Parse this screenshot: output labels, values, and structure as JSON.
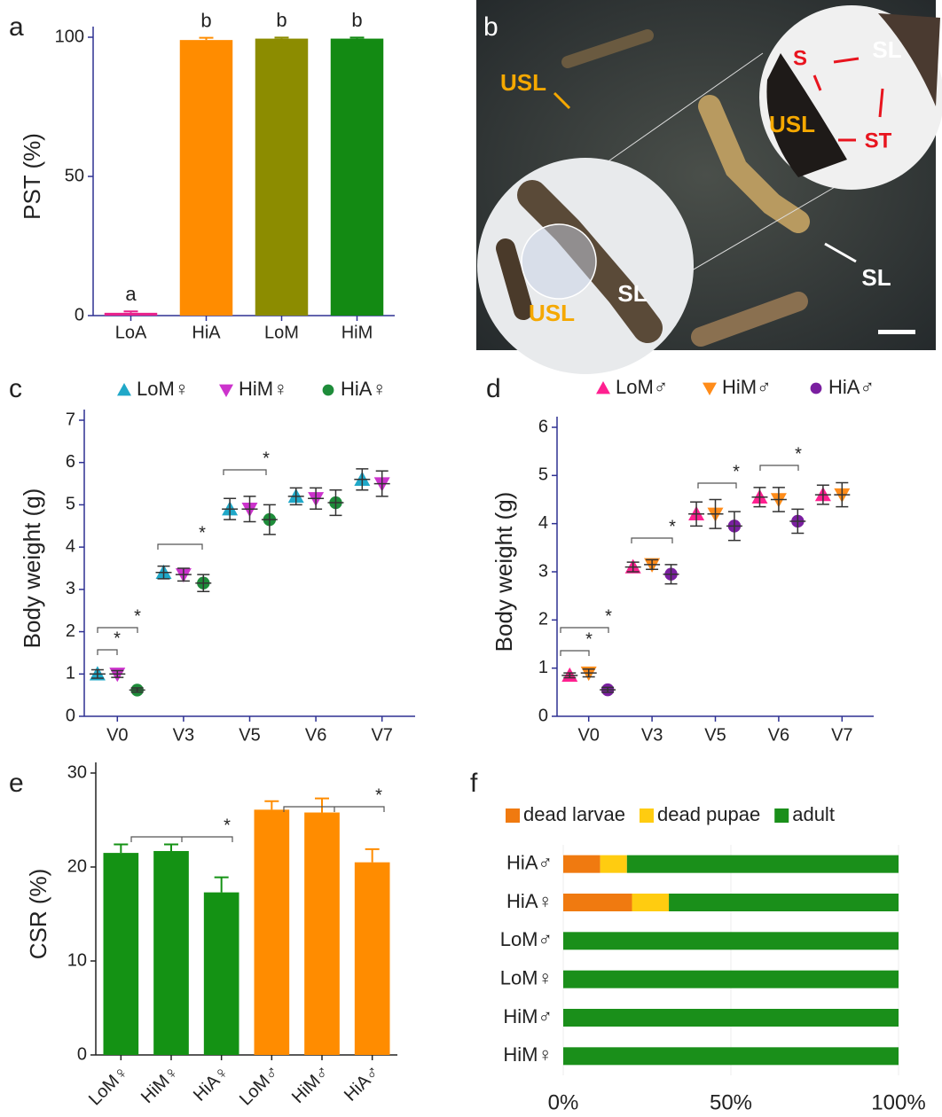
{
  "chart_data": [
    {
      "panel": "a",
      "type": "bar",
      "ylabel": "PST (%)",
      "categories": [
        "LoA",
        "HiA",
        "LoM",
        "HiM"
      ],
      "values": [
        1,
        99,
        99.5,
        99.5
      ],
      "errors": [
        0.5,
        0.8,
        0.4,
        0.4
      ],
      "colors": [
        "#e8228c",
        "#ff8c00",
        "#8c8c00",
        "#138a13"
      ],
      "group_labels": [
        "a",
        "b",
        "b",
        "b"
      ],
      "ylim": [
        0,
        100
      ],
      "yticks": [
        0,
        50,
        100
      ]
    },
    {
      "panel": "c",
      "type": "dot",
      "ylabel": "Body weight (g)",
      "categories": [
        "V0",
        "V3",
        "V5",
        "V6",
        "V7"
      ],
      "series": [
        {
          "name": "LoM♀",
          "color": "#20a8c8",
          "marker": "triangle",
          "values": [
            1.0,
            3.4,
            4.9,
            5.2,
            5.6
          ],
          "errors": [
            0.1,
            0.15,
            0.25,
            0.2,
            0.25
          ]
        },
        {
          "name": "HiM♀",
          "color": "#cc33cc",
          "marker": "triangle-down",
          "values": [
            1.0,
            3.35,
            4.9,
            5.15,
            5.5
          ],
          "errors": [
            0.08,
            0.15,
            0.3,
            0.25,
            0.3
          ]
        },
        {
          "name": "HiA♀",
          "color": "#1e8c3a",
          "marker": "circle",
          "values": [
            0.62,
            3.15,
            4.65,
            5.05,
            null
          ],
          "errors": [
            0.05,
            0.2,
            0.35,
            0.3,
            null
          ]
        }
      ],
      "annotations": [
        "*",
        "*",
        "*",
        "*"
      ],
      "ylim": [
        0,
        7
      ],
      "yticks": [
        0,
        1,
        2,
        3,
        4,
        5,
        6,
        7
      ]
    },
    {
      "panel": "d",
      "type": "dot",
      "ylabel": "Body weight (g)",
      "categories": [
        "V0",
        "V3",
        "V5",
        "V6",
        "V7"
      ],
      "series": [
        {
          "name": "LoM♂",
          "color": "#ff2090",
          "marker": "triangle",
          "values": [
            0.85,
            3.1,
            4.2,
            4.55,
            4.6
          ],
          "errors": [
            0.05,
            0.1,
            0.25,
            0.2,
            0.2
          ]
        },
        {
          "name": "HiM♂",
          "color": "#ff8c1a",
          "marker": "triangle-down",
          "values": [
            0.9,
            3.15,
            4.2,
            4.5,
            4.6
          ],
          "errors": [
            0.08,
            0.1,
            0.3,
            0.25,
            0.25
          ]
        },
        {
          "name": "HiA♂",
          "color": "#7a1fa0",
          "marker": "circle",
          "values": [
            0.55,
            2.95,
            3.95,
            4.05,
            null
          ],
          "errors": [
            0.05,
            0.2,
            0.3,
            0.25,
            null
          ]
        }
      ],
      "annotations": [
        "*",
        "*",
        "*",
        "*",
        "*"
      ],
      "ylim": [
        0,
        6
      ],
      "yticks": [
        0,
        1,
        2,
        3,
        4,
        5,
        6
      ]
    },
    {
      "panel": "e",
      "type": "bar",
      "ylabel": "CSR (%)",
      "categories": [
        "LoM♀",
        "HiM♀",
        "HiA♀",
        "LoM♂",
        "HiM♂",
        "HiA♂"
      ],
      "values": [
        21.5,
        21.7,
        17.3,
        26.1,
        25.8,
        20.5
      ],
      "errors": [
        0.9,
        0.7,
        1.6,
        0.9,
        1.5,
        1.4
      ],
      "colors": [
        "#149214",
        "#149214",
        "#149214",
        "#ff8c00",
        "#ff8c00",
        "#ff8c00"
      ],
      "annotations": [
        "*",
        "*"
      ],
      "ylim": [
        0,
        30
      ],
      "yticks": [
        0,
        10,
        20,
        30
      ]
    },
    {
      "panel": "f",
      "type": "stacked-barh",
      "categories": [
        "HiA♂",
        "HiA♀",
        "LoM♂",
        "LoM♀",
        "HiM♂",
        "HiM♀"
      ],
      "series": [
        {
          "name": "dead larvae",
          "color": "#f07a10",
          "values": [
            11,
            20.5,
            0,
            0,
            0,
            0
          ]
        },
        {
          "name": "dead pupae",
          "color": "#ffcc10",
          "values": [
            8,
            11,
            0,
            0,
            0,
            0
          ]
        },
        {
          "name": "adult",
          "color": "#1a8f1a",
          "values": [
            81,
            68.5,
            100,
            100,
            100,
            100
          ]
        }
      ],
      "xlim": [
        0,
        100
      ],
      "xticks": [
        {
          "value": 0,
          "label": "0%"
        },
        {
          "value": 50,
          "label": "50%"
        },
        {
          "value": 100,
          "label": "100%"
        }
      ],
      "grid": true
    }
  ],
  "photo": {
    "panel": "b",
    "labels": [
      "USL",
      "S",
      "SL",
      "USL",
      "ST",
      "SL",
      "SL",
      "USL"
    ]
  }
}
